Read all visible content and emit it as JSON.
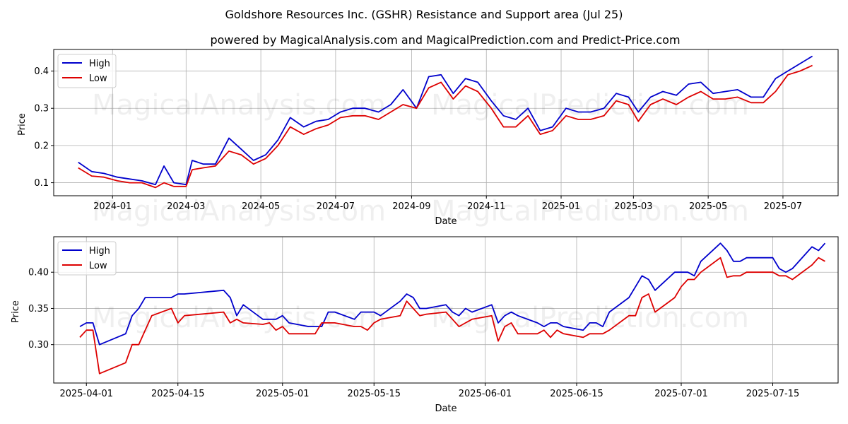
{
  "figure": {
    "title": "Goldshore Resources Inc. (GSHR) Resistance and Support area (Jul 25)",
    "subtitle": "powered by MagicalAnalysis.com and MagicalPrediction.com and Predict-Price.com",
    "watermarks": [
      "MagicalAnalysis.com",
      "MagicalPrediction.com"
    ]
  },
  "colors": {
    "high": "#0000cc",
    "low": "#dd0000",
    "grid": "#b0b0b0"
  },
  "chart_data": [
    {
      "type": "line",
      "xlabel": "Date",
      "ylabel": "Price",
      "xlim": [
        "2023-11-14",
        "2025-08-15"
      ],
      "ylim": [
        0.065,
        0.458
      ],
      "xticks": [
        "2024-01-01",
        "2024-03-01",
        "2024-05-01",
        "2024-07-01",
        "2024-09-01",
        "2024-11-01",
        "2025-01-01",
        "2025-03-01",
        "2025-05-01",
        "2025-07-01"
      ],
      "xtick_labels": [
        "2024-01",
        "2024-03",
        "2024-05",
        "2024-07",
        "2024-09",
        "2024-11",
        "2025-01",
        "2025-03",
        "2025-05",
        "2025-07"
      ],
      "yticks": [
        0.1,
        0.2,
        0.3,
        0.4
      ],
      "ytick_labels": [
        "0.1",
        "0.2",
        "0.3",
        "0.4"
      ],
      "legend": "top-left",
      "x": [
        "2023-12-04",
        "2023-12-15",
        "2023-12-25",
        "2024-01-05",
        "2024-01-15",
        "2024-01-25",
        "2024-02-05",
        "2024-02-12",
        "2024-02-20",
        "2024-03-01",
        "2024-03-06",
        "2024-03-15",
        "2024-03-25",
        "2024-04-05",
        "2024-04-15",
        "2024-04-25",
        "2024-05-05",
        "2024-05-15",
        "2024-05-25",
        "2024-06-05",
        "2024-06-15",
        "2024-06-25",
        "2024-07-05",
        "2024-07-15",
        "2024-07-25",
        "2024-08-05",
        "2024-08-15",
        "2024-08-25",
        "2024-09-05",
        "2024-09-15",
        "2024-09-25",
        "2024-10-05",
        "2024-10-15",
        "2024-10-25",
        "2024-11-05",
        "2024-11-15",
        "2024-11-25",
        "2024-12-05",
        "2024-12-15",
        "2024-12-25",
        "2025-01-05",
        "2025-01-15",
        "2025-01-25",
        "2025-02-05",
        "2025-02-15",
        "2025-02-25",
        "2025-03-05",
        "2025-03-15",
        "2025-03-25",
        "2025-04-05",
        "2025-04-15",
        "2025-04-25",
        "2025-05-05",
        "2025-05-15",
        "2025-05-25",
        "2025-06-05",
        "2025-06-15",
        "2025-06-25",
        "2025-07-05",
        "2025-07-15",
        "2025-07-25"
      ],
      "series": [
        {
          "name": "High",
          "values": [
            0.155,
            0.13,
            0.125,
            0.115,
            0.11,
            0.105,
            0.095,
            0.145,
            0.1,
            0.095,
            0.16,
            0.15,
            0.15,
            0.22,
            0.19,
            0.16,
            0.175,
            0.215,
            0.275,
            0.25,
            0.265,
            0.27,
            0.29,
            0.3,
            0.3,
            0.29,
            0.31,
            0.35,
            0.3,
            0.385,
            0.39,
            0.34,
            0.38,
            0.37,
            0.32,
            0.28,
            0.27,
            0.3,
            0.24,
            0.25,
            0.3,
            0.29,
            0.29,
            0.3,
            0.34,
            0.33,
            0.29,
            0.33,
            0.345,
            0.335,
            0.365,
            0.37,
            0.34,
            0.345,
            0.35,
            0.33,
            0.33,
            0.38,
            0.4,
            0.42,
            0.44
          ]
        },
        {
          "name": "Low",
          "values": [
            0.14,
            0.118,
            0.115,
            0.105,
            0.1,
            0.1,
            0.087,
            0.1,
            0.09,
            0.09,
            0.135,
            0.14,
            0.145,
            0.185,
            0.175,
            0.15,
            0.165,
            0.2,
            0.25,
            0.23,
            0.245,
            0.255,
            0.275,
            0.28,
            0.28,
            0.27,
            0.29,
            0.31,
            0.3,
            0.355,
            0.37,
            0.325,
            0.36,
            0.345,
            0.3,
            0.25,
            0.25,
            0.28,
            0.23,
            0.24,
            0.28,
            0.27,
            0.27,
            0.28,
            0.32,
            0.31,
            0.265,
            0.31,
            0.325,
            0.31,
            0.33,
            0.345,
            0.325,
            0.325,
            0.33,
            0.315,
            0.315,
            0.345,
            0.39,
            0.4,
            0.415
          ]
        }
      ]
    },
    {
      "type": "line",
      "xlabel": "Date",
      "ylabel": "Price",
      "xlim": [
        "2025-03-27",
        "2025-07-25"
      ],
      "ylim": [
        0.247,
        0.449
      ],
      "xticks": [
        "2025-04-01",
        "2025-04-15",
        "2025-05-01",
        "2025-05-15",
        "2025-06-01",
        "2025-06-15",
        "2025-07-01",
        "2025-07-15"
      ],
      "xtick_labels": [
        "2025-04-01",
        "2025-04-15",
        "2025-05-01",
        "2025-05-15",
        "2025-06-01",
        "2025-06-15",
        "2025-07-01",
        "2025-07-15"
      ],
      "yticks": [
        0.3,
        0.35,
        0.4
      ],
      "ytick_labels": [
        "0.30",
        "0.35",
        "0.40"
      ],
      "legend": "top-left",
      "x": [
        "2025-03-31",
        "2025-04-01",
        "2025-04-02",
        "2025-04-03",
        "2025-04-07",
        "2025-04-08",
        "2025-04-09",
        "2025-04-10",
        "2025-04-11",
        "2025-04-14",
        "2025-04-15",
        "2025-04-16",
        "2025-04-22",
        "2025-04-23",
        "2025-04-24",
        "2025-04-25",
        "2025-04-28",
        "2025-04-29",
        "2025-04-30",
        "2025-05-01",
        "2025-05-02",
        "2025-05-05",
        "2025-05-06",
        "2025-05-07",
        "2025-05-08",
        "2025-05-09",
        "2025-05-12",
        "2025-05-13",
        "2025-05-14",
        "2025-05-15",
        "2025-05-16",
        "2025-05-19",
        "2025-05-20",
        "2025-05-21",
        "2025-05-22",
        "2025-05-23",
        "2025-05-26",
        "2025-05-27",
        "2025-05-28",
        "2025-05-29",
        "2025-05-30",
        "2025-06-02",
        "2025-06-03",
        "2025-06-04",
        "2025-06-05",
        "2025-06-06",
        "2025-06-09",
        "2025-06-10",
        "2025-06-11",
        "2025-06-12",
        "2025-06-13",
        "2025-06-16",
        "2025-06-17",
        "2025-06-18",
        "2025-06-19",
        "2025-06-20",
        "2025-06-23",
        "2025-06-24",
        "2025-06-25",
        "2025-06-26",
        "2025-06-27",
        "2025-06-30",
        "2025-07-01",
        "2025-07-02",
        "2025-07-03",
        "2025-07-04",
        "2025-07-07",
        "2025-07-08",
        "2025-07-09",
        "2025-07-10",
        "2025-07-11",
        "2025-07-14",
        "2025-07-15",
        "2025-07-16",
        "2025-07-17",
        "2025-07-18",
        "2025-07-21",
        "2025-07-22",
        "2025-07-23"
      ],
      "series": [
        {
          "name": "High",
          "values": [
            0.325,
            0.33,
            0.33,
            0.3,
            0.315,
            0.34,
            0.35,
            0.365,
            0.365,
            0.365,
            0.37,
            0.37,
            0.375,
            0.365,
            0.34,
            0.355,
            0.335,
            0.335,
            0.335,
            0.34,
            0.33,
            0.325,
            0.325,
            0.325,
            0.345,
            0.345,
            0.335,
            0.345,
            0.345,
            0.345,
            0.34,
            0.36,
            0.37,
            0.365,
            0.35,
            0.35,
            0.355,
            0.345,
            0.34,
            0.35,
            0.345,
            0.355,
            0.33,
            0.34,
            0.345,
            0.34,
            0.33,
            0.325,
            0.33,
            0.33,
            0.325,
            0.32,
            0.33,
            0.33,
            0.325,
            0.345,
            0.365,
            0.38,
            0.395,
            0.39,
            0.375,
            0.4,
            0.4,
            0.4,
            0.395,
            0.415,
            0.44,
            0.43,
            0.415,
            0.415,
            0.42,
            0.42,
            0.42,
            0.405,
            0.4,
            0.405,
            0.435,
            0.43,
            0.44
          ]
        },
        {
          "name": "Low",
          "values": [
            0.31,
            0.32,
            0.32,
            0.26,
            0.275,
            0.3,
            0.3,
            0.32,
            0.34,
            0.35,
            0.33,
            0.34,
            0.345,
            0.33,
            0.335,
            0.33,
            0.328,
            0.33,
            0.32,
            0.325,
            0.315,
            0.315,
            0.315,
            0.33,
            0.33,
            0.33,
            0.325,
            0.325,
            0.32,
            0.33,
            0.335,
            0.34,
            0.36,
            0.35,
            0.34,
            0.342,
            0.345,
            0.335,
            0.325,
            0.33,
            0.335,
            0.34,
            0.305,
            0.325,
            0.33,
            0.315,
            0.315,
            0.32,
            0.31,
            0.32,
            0.315,
            0.31,
            0.315,
            0.315,
            0.315,
            0.32,
            0.34,
            0.34,
            0.365,
            0.37,
            0.345,
            0.365,
            0.38,
            0.39,
            0.39,
            0.4,
            0.42,
            0.393,
            0.395,
            0.395,
            0.4,
            0.4,
            0.4,
            0.395,
            0.395,
            0.39,
            0.41,
            0.42,
            0.415
          ]
        }
      ]
    }
  ]
}
